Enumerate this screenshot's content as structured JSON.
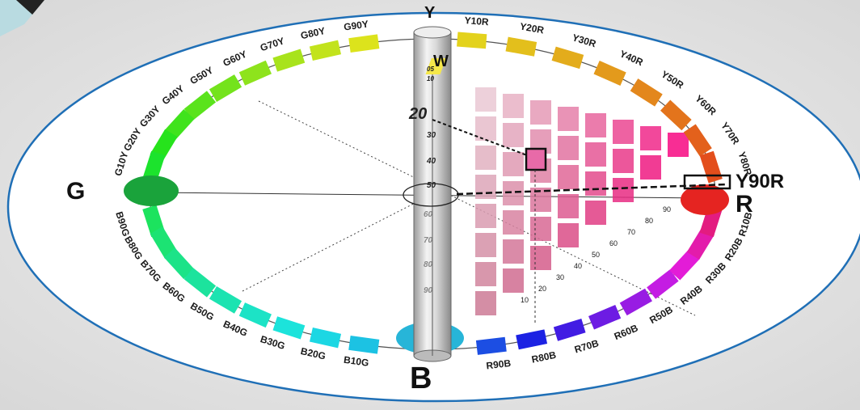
{
  "primaries": {
    "W": "W",
    "B": "B",
    "G": "G",
    "R": "R",
    "Y_top": "Y"
  },
  "axis_scale": {
    "top_marks": [
      "05",
      "10",
      "20",
      "30",
      "40",
      "50"
    ],
    "lower_marks": [
      "60",
      "70",
      "80",
      "90"
    ]
  },
  "highlight": {
    "hue": "Y90R",
    "blackness_mark": "20"
  },
  "hues_right": [
    "Y10R",
    "Y20R",
    "Y30R",
    "Y40R",
    "Y50R",
    "Y60R",
    "Y70R",
    "Y80R"
  ],
  "hues_left_top": [
    "G90Y",
    "G80Y",
    "G70Y",
    "G60Y",
    "G50Y",
    "G40Y",
    "G30Y",
    "G20Y",
    "G10Y"
  ],
  "hues_left_bottom": [
    "B90G",
    "B80G",
    "B70G",
    "B60G",
    "B50G",
    "B40G",
    "B30G",
    "B20G",
    "B10G"
  ],
  "hues_bottom_right": [
    "R90B",
    "R80B",
    "R70B",
    "R60B",
    "R50B",
    "R40B",
    "R30B",
    "R20B",
    "R10B"
  ],
  "chroma_marks": [
    "90",
    "80",
    "70",
    "60",
    "50",
    "40",
    "30",
    "20",
    "10"
  ],
  "colors": {
    "ellipse_stroke": "#1f6fb6",
    "red": "#e52421",
    "green": "#1aa33b",
    "blue": "#27b5d8",
    "yellow": "#f6e84a"
  }
}
